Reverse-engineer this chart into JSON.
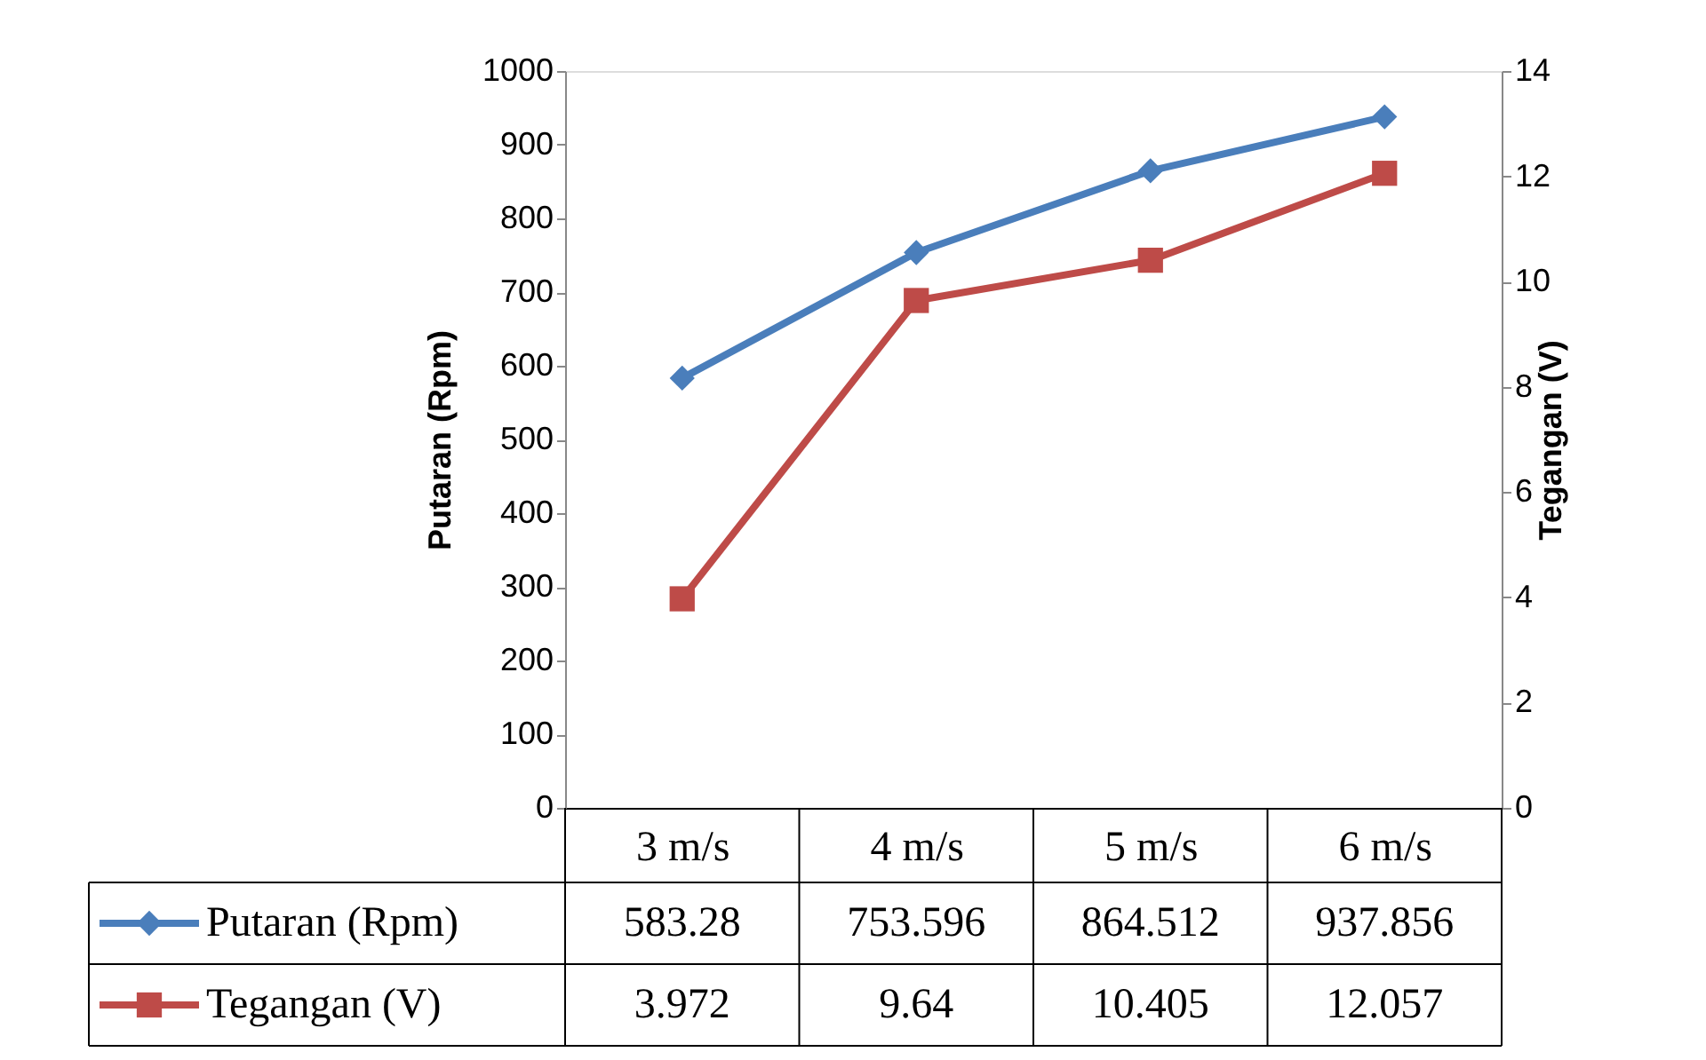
{
  "chart_data": {
    "type": "line",
    "categories": [
      "3 m/s",
      "4 m/s",
      "5 m/s",
      "6 m/s"
    ],
    "ylabel": "Putaran (Rpm)",
    "y2label": "Tegangan (V)",
    "ylim": [
      0,
      1000
    ],
    "yticks": [
      0,
      100,
      200,
      300,
      400,
      500,
      600,
      700,
      800,
      900,
      1000
    ],
    "y2lim": [
      0,
      14
    ],
    "y2ticks": [
      0,
      2,
      4,
      6,
      8,
      10,
      12,
      14
    ],
    "series": [
      {
        "name": "Putaran (Rpm)",
        "color": "#4a7ebb",
        "marker": "diamond",
        "axis": "y",
        "values": [
          583.28,
          753.596,
          864.512,
          937.856
        ]
      },
      {
        "name": "Tegangan (V)",
        "color": "#be4b48",
        "marker": "square",
        "axis": "y2",
        "values": [
          3.972,
          9.64,
          10.405,
          12.057
        ]
      }
    ],
    "data_labels": true,
    "legend": "bottom",
    "grid": false,
    "line_style": "solid"
  }
}
